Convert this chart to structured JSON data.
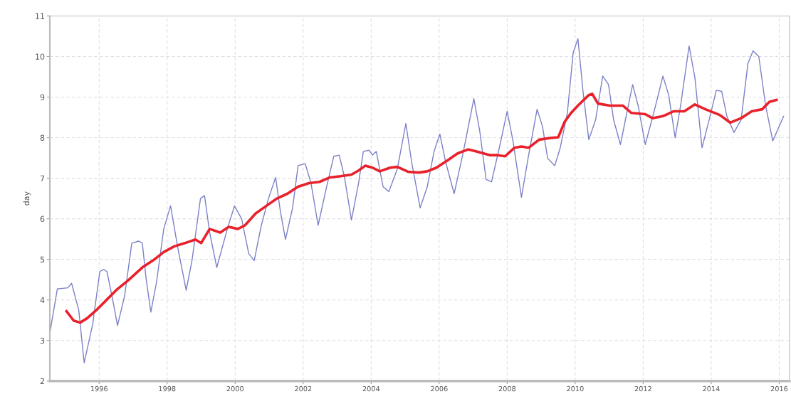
{
  "chart_data": {
    "type": "line",
    "ylabel": "day",
    "xlim": [
      1994.55,
      2016.3
    ],
    "xticks": [
      1996,
      1998,
      2000,
      2002,
      2004,
      2006,
      2008,
      2010,
      2012,
      2014,
      2016
    ],
    "ylim": [
      2,
      11
    ],
    "yticks": [
      2,
      3,
      4,
      5,
      6,
      7,
      8,
      9,
      10,
      11
    ],
    "grid": true,
    "line_style": "solid",
    "marker": "none",
    "series": [
      {
        "color": "#7b80c6",
        "x": [
          1994.56,
          1994.77,
          1995.08,
          1995.19,
          1995.4,
          1995.56,
          1995.81,
          1996.02,
          1996.13,
          1996.23,
          1996.4,
          1996.54,
          1996.75,
          1996.96,
          1997.17,
          1997.27,
          1997.38,
          1997.52,
          1997.69,
          1997.9,
          1998.1,
          1998.31,
          1998.56,
          1998.73,
          1998.98,
          1999.1,
          1999.25,
          1999.46,
          1999.77,
          1999.98,
          2000.19,
          2000.4,
          2000.56,
          2000.77,
          2000.98,
          2001.19,
          2001.33,
          2001.48,
          2001.69,
          2001.85,
          2002.06,
          2002.23,
          2002.44,
          2002.69,
          2002.9,
          2003.06,
          2003.21,
          2003.42,
          2003.63,
          2003.77,
          2003.94,
          2004.04,
          2004.15,
          2004.35,
          2004.52,
          2004.77,
          2005.02,
          2005.19,
          2005.44,
          2005.65,
          2005.85,
          2006.02,
          2006.19,
          2006.44,
          2006.69,
          2007.02,
          2007.19,
          2007.38,
          2007.54,
          2007.79,
          2008.0,
          2008.17,
          2008.42,
          2008.63,
          2008.88,
          2009.04,
          2009.19,
          2009.4,
          2009.56,
          2009.77,
          2009.94,
          2010.08,
          2010.23,
          2010.4,
          2010.6,
          2010.81,
          2010.98,
          2011.13,
          2011.33,
          2011.54,
          2011.69,
          2011.85,
          2012.06,
          2012.31,
          2012.58,
          2012.75,
          2012.94,
          2013.1,
          2013.35,
          2013.52,
          2013.73,
          2013.94,
          2014.15,
          2014.31,
          2014.46,
          2014.67,
          2014.88,
          2015.08,
          2015.23,
          2015.4,
          2015.6,
          2015.81,
          2016.13
        ],
        "values": [
          3.23,
          4.27,
          4.3,
          4.41,
          3.75,
          2.45,
          3.4,
          4.7,
          4.75,
          4.7,
          4.0,
          3.37,
          4.1,
          5.4,
          5.45,
          5.4,
          4.53,
          3.7,
          4.45,
          5.75,
          6.32,
          5.3,
          4.24,
          4.97,
          6.5,
          6.57,
          5.66,
          4.8,
          5.75,
          6.32,
          6.0,
          5.14,
          4.97,
          5.84,
          6.5,
          7.02,
          6.18,
          5.49,
          6.27,
          7.31,
          7.36,
          6.88,
          5.84,
          6.79,
          7.54,
          7.57,
          7.05,
          5.97,
          6.88,
          7.66,
          7.69,
          7.57,
          7.66,
          6.79,
          6.67,
          7.23,
          8.35,
          7.4,
          6.27,
          6.79,
          7.66,
          8.09,
          7.4,
          6.62,
          7.57,
          8.96,
          8.18,
          6.97,
          6.91,
          7.83,
          8.65,
          7.92,
          6.53,
          7.57,
          8.7,
          8.27,
          7.49,
          7.31,
          7.75,
          8.61,
          10.09,
          10.44,
          9.14,
          7.95,
          8.44,
          9.52,
          9.31,
          8.44,
          7.83,
          8.7,
          9.31,
          8.79,
          7.83,
          8.61,
          9.52,
          9.05,
          8.0,
          8.79,
          10.26,
          9.48,
          7.75,
          8.44,
          9.17,
          9.14,
          8.53,
          8.13,
          8.44,
          9.83,
          10.14,
          10.0,
          8.79,
          7.92,
          8.53
        ]
      },
      {
        "color": "#e8212b",
        "x": [
          1995.04,
          1995.25,
          1995.44,
          1995.65,
          1995.92,
          1996.23,
          1996.54,
          1996.85,
          1997.27,
          1997.58,
          1997.9,
          1998.21,
          1998.52,
          1998.83,
          1999.0,
          1999.25,
          1999.56,
          1999.81,
          2000.08,
          2000.29,
          2000.6,
          2000.92,
          2001.23,
          2001.54,
          2001.85,
          2002.17,
          2002.48,
          2002.79,
          2003.1,
          2003.42,
          2003.63,
          2003.83,
          2004.04,
          2004.25,
          2004.56,
          2004.77,
          2005.08,
          2005.4,
          2005.65,
          2005.92,
          2006.23,
          2006.54,
          2006.85,
          2007.1,
          2007.48,
          2007.69,
          2007.94,
          2008.21,
          2008.42,
          2008.63,
          2008.94,
          2009.25,
          2009.5,
          2009.69,
          2009.88,
          2010.08,
          2010.4,
          2010.5,
          2010.67,
          2011.02,
          2011.4,
          2011.65,
          2012.06,
          2012.27,
          2012.58,
          2012.9,
          2013.21,
          2013.52,
          2013.83,
          2014.25,
          2014.56,
          2014.88,
          2015.19,
          2015.5,
          2015.71,
          2015.92
        ],
        "values": [
          3.72,
          3.49,
          3.44,
          3.55,
          3.75,
          4.01,
          4.27,
          4.48,
          4.8,
          4.97,
          5.18,
          5.32,
          5.4,
          5.49,
          5.4,
          5.75,
          5.66,
          5.8,
          5.75,
          5.84,
          6.13,
          6.32,
          6.5,
          6.62,
          6.79,
          6.88,
          6.91,
          7.02,
          7.05,
          7.09,
          7.19,
          7.31,
          7.26,
          7.17,
          7.26,
          7.28,
          7.16,
          7.14,
          7.17,
          7.26,
          7.43,
          7.61,
          7.71,
          7.66,
          7.57,
          7.57,
          7.54,
          7.75,
          7.78,
          7.75,
          7.95,
          7.99,
          8.01,
          8.39,
          8.61,
          8.79,
          9.05,
          9.08,
          8.84,
          8.79,
          8.79,
          8.61,
          8.58,
          8.48,
          8.53,
          8.65,
          8.65,
          8.82,
          8.7,
          8.56,
          8.37,
          8.48,
          8.65,
          8.7,
          8.88,
          8.93
        ]
      }
    ]
  }
}
